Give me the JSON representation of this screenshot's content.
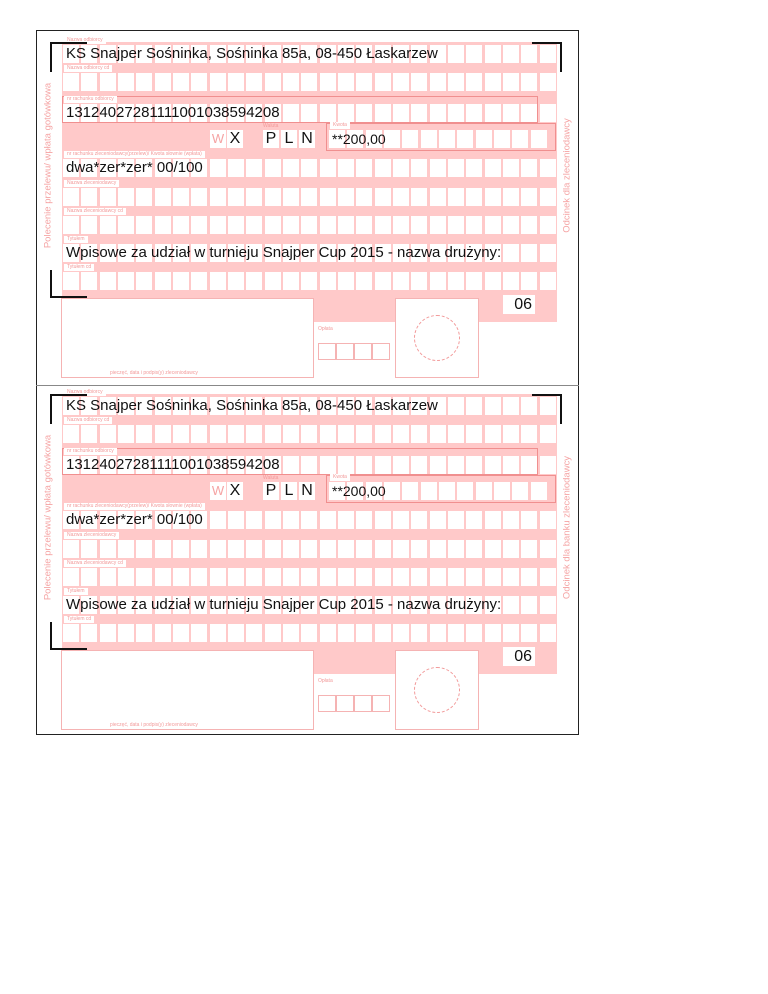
{
  "forms": [
    {
      "side_left": "Polecenie przelewu/ wpłata gotówkowa",
      "side_right": "Odcinek dla zleceniodawcy",
      "labels": {
        "recipient_name": "Nazwa odbiorcy",
        "recipient_name_cont": "Nazwa odbiorcy cd",
        "recipient_account": "nr rachunku odbiorcy",
        "currency": "Waluta",
        "amount": "Kwota",
        "sender_account_amount_words": "nr rachunku zleceniodawcy(przelew)/ Kwota słownie (wpłata)",
        "sender_name": "Nazwa zleceniodawcy",
        "sender_name_cont": "Nazwa zleceniodawcy cd",
        "title": "Tytułem",
        "title_cont": "Tytułem cd",
        "fee": "Opłata",
        "signature": "pieczęć, data i podpis(y) zleceniodawcy",
        "w_marker": "W"
      },
      "values": {
        "recipient_name": "KS Snajper Sośninka, Sośninka 85a, 08-450 Łaskarzew",
        "recipient_account": "13124027281111001038594208",
        "x_marker": "X",
        "currency": [
          "P",
          "L",
          "N"
        ],
        "amount": "**200,00",
        "amount_words": "dwa*zer*zer* 00/100",
        "title": "Wpisowe za udział w turnieju Snajper Cup 2015 - nazwa drużyny:",
        "form_code": "06"
      }
    },
    {
      "side_left": "Polecenie przelewu/ wpłata gotówkowa",
      "side_right": "Odcinek dla banku zleceniodawcy",
      "labels": {
        "recipient_name": "Nazwa odbiorcy",
        "recipient_name_cont": "Nazwa odbiorcy cd",
        "recipient_account": "nr rachunku odbiorcy",
        "currency": "Waluta",
        "amount": "Kwota",
        "sender_account_amount_words": "nr rachunku zleceniodawcy(przelew)/ Kwota słownie (wpłata)",
        "sender_name": "Nazwa zleceniodawcy",
        "sender_name_cont": "Nazwa zleceniodawcy cd",
        "title": "Tytułem",
        "title_cont": "Tytułem cd",
        "fee": "Opłata",
        "signature": "pieczęć, data i podpis(y) zleceniodawcy",
        "w_marker": "W"
      },
      "values": {
        "recipient_name": "KS Snajper Sośninka, Sośninka 85a, 08-450 Łaskarzew",
        "recipient_account": "13124027281111001038594208",
        "x_marker": "X",
        "currency": [
          "P",
          "L",
          "N"
        ],
        "amount": "**200,00",
        "amount_words": "dwa*zer*zer* 00/100",
        "title": "Wpisowe za udział w turnieju Snajper Cup 2015 - nazwa drużyny:",
        "form_code": "06"
      }
    }
  ],
  "colors": {
    "form_pink": "#ffc9c9",
    "form_line": "#f08f8f",
    "ink": "#111111"
  }
}
